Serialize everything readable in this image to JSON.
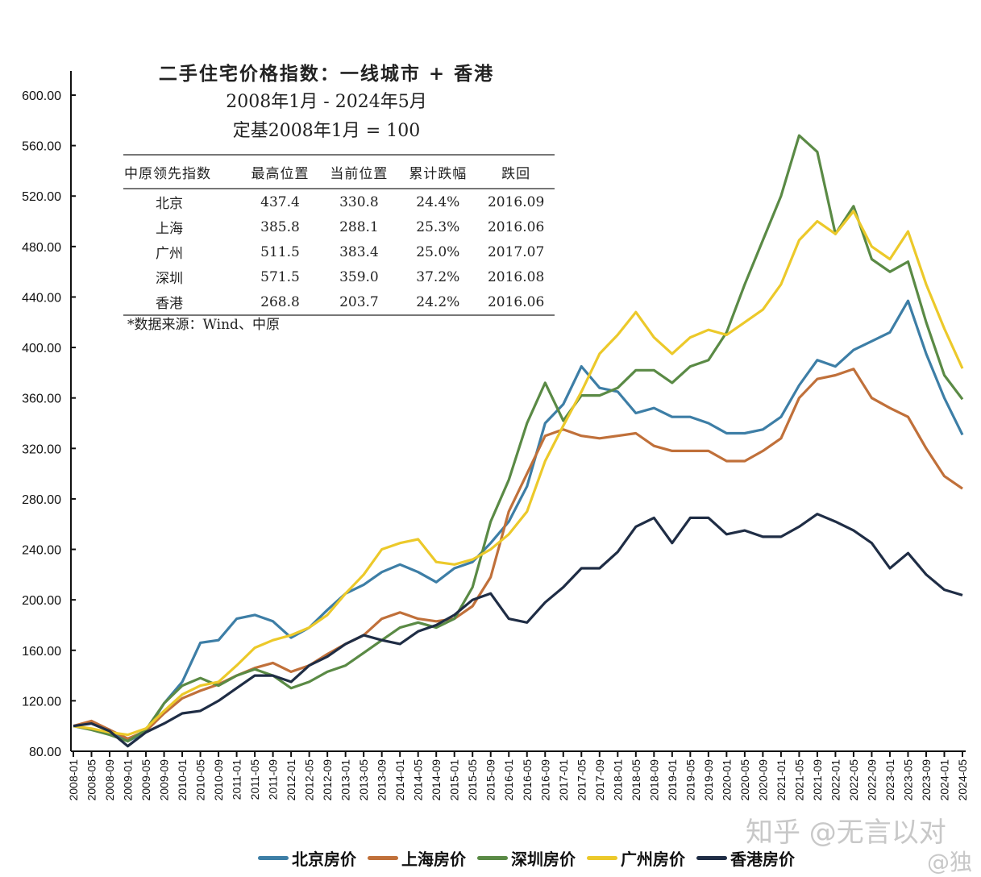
{
  "title_lines": [
    "二手住宅价格指数：一线城市 + 香港",
    "2008年1月 - 2024年5月",
    "定基2008年1月 = 100"
  ],
  "table": {
    "headers": [
      "中原领先指数",
      "最高位置",
      "当前位置",
      "累计跌幅",
      "跌回"
    ],
    "rows": [
      [
        "北京",
        "437.4",
        "330.8",
        "24.4%",
        "2016.09"
      ],
      [
        "上海",
        "385.8",
        "288.1",
        "25.3%",
        "2016.06"
      ],
      [
        "广州",
        "511.5",
        "383.4",
        "25.0%",
        "2017.07"
      ],
      [
        "深圳",
        "571.5",
        "359.0",
        "37.2%",
        "2016.08"
      ],
      [
        "香港",
        "268.8",
        "203.7",
        "24.2%",
        "2016.06"
      ]
    ],
    "source": "*数据来源：Wind、中原"
  },
  "watermarks": [
    "知乎 @无言以对",
    "@独"
  ],
  "chart_data": {
    "type": "line",
    "ylim": [
      80,
      600
    ],
    "yticks": [
      "80.00",
      "120.00",
      "160.00",
      "200.00",
      "240.00",
      "280.00",
      "320.00",
      "360.00",
      "400.00",
      "440.00",
      "480.00",
      "520.00",
      "560.00",
      "600.00"
    ],
    "x": [
      "2008-01",
      "2008-05",
      "2008-09",
      "2009-01",
      "2009-05",
      "2009-09",
      "2010-01",
      "2010-05",
      "2010-09",
      "2011-01",
      "2011-05",
      "2011-09",
      "2012-01",
      "2012-05",
      "2012-09",
      "2013-01",
      "2013-05",
      "2013-09",
      "2014-01",
      "2014-05",
      "2014-09",
      "2015-01",
      "2015-05",
      "2015-09",
      "2016-01",
      "2016-05",
      "2016-09",
      "2017-01",
      "2017-05",
      "2017-09",
      "2018-01",
      "2018-05",
      "2018-09",
      "2019-01",
      "2019-05",
      "2019-09",
      "2020-01",
      "2020-05",
      "2020-09",
      "2021-01",
      "2021-05",
      "2021-09",
      "2022-01",
      "2022-05",
      "2022-09",
      "2023-01",
      "2023-05",
      "2023-09",
      "2024-01",
      "2024-05"
    ],
    "legend_position": "bottom",
    "grid": false,
    "series": [
      {
        "name": "北京房价",
        "color": "#3d7ea6",
        "values": [
          100,
          103,
          97,
          88,
          95,
          118,
          135,
          166,
          168,
          185,
          188,
          183,
          170,
          178,
          192,
          205,
          212,
          222,
          228,
          222,
          214,
          225,
          230,
          245,
          262,
          290,
          340,
          355,
          385,
          368,
          365,
          348,
          352,
          345,
          345,
          340,
          332,
          332,
          335,
          345,
          370,
          390,
          385,
          398,
          405,
          412,
          437,
          395,
          360,
          330.8
        ]
      },
      {
        "name": "上海房价",
        "color": "#c0703a",
        "values": [
          100,
          104,
          97,
          90,
          96,
          110,
          122,
          128,
          133,
          140,
          146,
          150,
          143,
          148,
          157,
          165,
          172,
          185,
          190,
          185,
          183,
          185,
          195,
          218,
          270,
          300,
          330,
          335,
          330,
          328,
          330,
          332,
          322,
          318,
          318,
          318,
          310,
          310,
          318,
          328,
          360,
          375,
          378,
          383,
          360,
          352,
          345,
          320,
          298,
          288.1
        ]
      },
      {
        "name": "深圳房价",
        "color": "#5a8a45",
        "values": [
          100,
          97,
          93,
          88,
          97,
          118,
          132,
          138,
          132,
          140,
          145,
          140,
          130,
          135,
          143,
          148,
          158,
          168,
          178,
          182,
          178,
          185,
          210,
          262,
          295,
          340,
          372,
          342,
          362,
          362,
          368,
          382,
          382,
          372,
          385,
          390,
          412,
          450,
          485,
          520,
          568,
          555,
          490,
          512,
          470,
          460,
          468,
          420,
          378,
          359
        ]
      },
      {
        "name": "广州房价",
        "color": "#ecc92a",
        "values": [
          100,
          98,
          95,
          93,
          98,
          112,
          125,
          132,
          135,
          148,
          162,
          168,
          172,
          178,
          188,
          205,
          220,
          240,
          245,
          248,
          230,
          228,
          232,
          240,
          252,
          270,
          310,
          338,
          365,
          395,
          410,
          428,
          408,
          395,
          408,
          414,
          410,
          420,
          430,
          450,
          485,
          500,
          490,
          508,
          480,
          470,
          492,
          450,
          415,
          383.4
        ]
      },
      {
        "name": "香港房价",
        "color": "#1f2d45",
        "values": [
          100,
          102,
          96,
          84,
          95,
          102,
          110,
          112,
          120,
          130,
          140,
          140,
          135,
          148,
          155,
          165,
          172,
          168,
          165,
          175,
          180,
          188,
          200,
          205,
          185,
          182,
          198,
          210,
          225,
          225,
          238,
          258,
          265,
          245,
          265,
          265,
          252,
          255,
          250,
          250,
          258,
          268,
          262,
          255,
          245,
          225,
          237,
          220,
          208,
          203.7
        ]
      }
    ]
  }
}
